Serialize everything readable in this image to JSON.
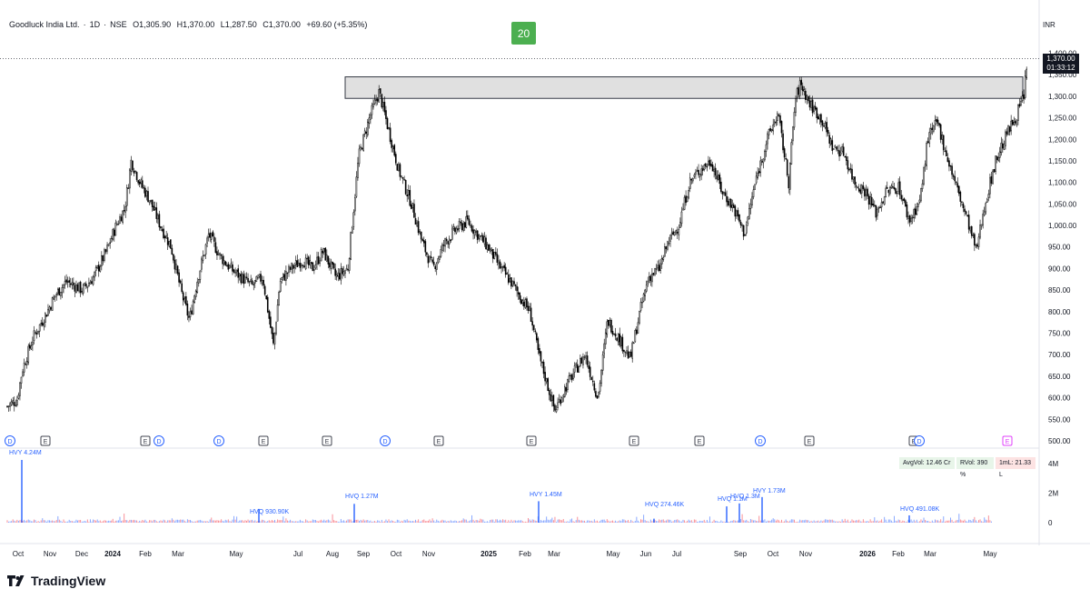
{
  "header": {
    "symbol": "Goodluck India Ltd.",
    "interval": "1D",
    "exchange": "NSE",
    "open": "O1,305.90",
    "high": "H1,370.00",
    "low": "L1,287.50",
    "close": "C1,370.00",
    "change": "+69.60 (+5.35%)"
  },
  "badge": "20",
  "currency": "INR",
  "price_label": {
    "price": "1,370.00",
    "countdown": "01:33:12"
  },
  "stats": {
    "avgvol": "AvgVol: 12.46 Cr",
    "rvol": "RVol: 390 %",
    "iml": "1mL: 21.33 L"
  },
  "brand": "TradingView",
  "colors": {
    "candle": "#000000",
    "zone_fill": "#e0e0e0",
    "zone_stroke": "#363a45",
    "event_d": "#2962ff",
    "event_e": "#434651",
    "vol_up": "#2962ff",
    "vol_down": "#f23645",
    "badge": "#4caf50"
  },
  "chart_data": {
    "type": "candlestick",
    "x_range": [
      "2023-10",
      "2026-05"
    ],
    "ylim": [
      500,
      1420
    ],
    "y_ticks": [
      "1,400.00",
      "1,350.00",
      "1,300.00",
      "1,250.00",
      "1,200.00",
      "1,150.00",
      "1,100.00",
      "1,050.00",
      "1,000.00",
      "950.00",
      "900.00",
      "850.00",
      "800.00",
      "750.00",
      "700.00",
      "650.00",
      "600.00",
      "550.00",
      "500.00"
    ],
    "x_ticks": [
      "Oct",
      "Nov",
      "Dec",
      "2024",
      "Feb",
      "Mar",
      "May",
      "Jul",
      "Aug",
      "Sep",
      "Oct",
      "Nov",
      "2025",
      "Feb",
      "Mar",
      "May",
      "Jun",
      "Jul",
      "Sep",
      "Oct",
      "Nov",
      "2026",
      "Feb",
      "Mar",
      "May"
    ],
    "resistance_zone": [
      1295,
      1345
    ],
    "last_price": 1370,
    "price_path": [
      [
        "2023-10-01",
        580
      ],
      [
        "2023-10-10",
        595
      ],
      [
        "2023-10-15",
        665
      ],
      [
        "2023-10-25",
        740
      ],
      [
        "2023-11-05",
        790
      ],
      [
        "2023-11-15",
        840
      ],
      [
        "2023-11-25",
        870
      ],
      [
        "2023-12-10",
        850
      ],
      [
        "2023-12-20",
        880
      ],
      [
        "2024-01-01",
        940
      ],
      [
        "2024-01-10",
        1000
      ],
      [
        "2024-01-18",
        1040
      ],
      [
        "2024-01-24",
        1150
      ],
      [
        "2024-02-01",
        1100
      ],
      [
        "2024-02-10",
        1060
      ],
      [
        "2024-02-20",
        1000
      ],
      [
        "2024-03-01",
        950
      ],
      [
        "2024-03-10",
        850
      ],
      [
        "2024-03-18",
        780
      ],
      [
        "2024-03-25",
        870
      ],
      [
        "2024-04-05",
        980
      ],
      [
        "2024-04-15",
        930
      ],
      [
        "2024-04-25",
        900
      ],
      [
        "2024-05-05",
        880
      ],
      [
        "2024-05-15",
        860
      ],
      [
        "2024-05-25",
        880
      ],
      [
        "2024-06-04",
        720
      ],
      [
        "2024-06-10",
        870
      ],
      [
        "2024-06-20",
        900
      ],
      [
        "2024-07-01",
        920
      ],
      [
        "2024-07-10",
        900
      ],
      [
        "2024-07-20",
        940
      ],
      [
        "2024-08-01",
        880
      ],
      [
        "2024-08-12",
        900
      ],
      [
        "2024-08-22",
        1160
      ],
      [
        "2024-09-01",
        1250
      ],
      [
        "2024-09-10",
        1310
      ],
      [
        "2024-09-18",
        1230
      ],
      [
        "2024-09-28",
        1130
      ],
      [
        "2024-10-10",
        1050
      ],
      [
        "2024-10-20",
        960
      ],
      [
        "2024-10-30",
        900
      ],
      [
        "2024-11-10",
        960
      ],
      [
        "2024-11-20",
        990
      ],
      [
        "2024-12-01",
        1010
      ],
      [
        "2024-12-10",
        980
      ],
      [
        "2024-12-20",
        950
      ],
      [
        "2025-01-01",
        900
      ],
      [
        "2025-01-10",
        870
      ],
      [
        "2025-01-20",
        830
      ],
      [
        "2025-01-28",
        800
      ],
      [
        "2025-02-05",
        700
      ],
      [
        "2025-02-12",
        640
      ],
      [
        "2025-02-20",
        570
      ],
      [
        "2025-03-01",
        620
      ],
      [
        "2025-03-10",
        660
      ],
      [
        "2025-03-20",
        700
      ],
      [
        "2025-04-01",
        600
      ],
      [
        "2025-04-10",
        780
      ],
      [
        "2025-04-20",
        740
      ],
      [
        "2025-05-01",
        690
      ],
      [
        "2025-05-10",
        800
      ],
      [
        "2025-05-18",
        880
      ],
      [
        "2025-05-28",
        900
      ],
      [
        "2025-06-05",
        960
      ],
      [
        "2025-06-15",
        1000
      ],
      [
        "2025-06-25",
        1100
      ],
      [
        "2025-07-05",
        1130
      ],
      [
        "2025-07-15",
        1150
      ],
      [
        "2025-07-25",
        1080
      ],
      [
        "2025-08-05",
        1040
      ],
      [
        "2025-08-15",
        980
      ],
      [
        "2025-08-25",
        1100
      ],
      [
        "2025-09-05",
        1200
      ],
      [
        "2025-09-15",
        1260
      ],
      [
        "2025-09-25",
        1100
      ],
      [
        "2025-10-01",
        1290
      ],
      [
        "2025-10-06",
        1330
      ],
      [
        "2025-10-15",
        1280
      ],
      [
        "2025-10-25",
        1250
      ],
      [
        "2025-11-05",
        1180
      ],
      [
        "2025-11-15",
        1170
      ],
      [
        "2025-11-25",
        1100
      ],
      [
        "2025-12-05",
        1080
      ],
      [
        "2025-12-15",
        1030
      ],
      [
        "2025-12-25",
        1080
      ],
      [
        "2026-01-05",
        1090
      ],
      [
        "2026-01-15",
        1010
      ],
      [
        "2026-01-25",
        1060
      ],
      [
        "2026-02-01",
        1200
      ],
      [
        "2026-02-10",
        1240
      ],
      [
        "2026-02-20",
        1150
      ],
      [
        "2026-03-01",
        1080
      ],
      [
        "2026-03-10",
        1010
      ],
      [
        "2026-03-18",
        940
      ],
      [
        "2026-03-26",
        1050
      ],
      [
        "2026-04-05",
        1150
      ],
      [
        "2026-04-15",
        1210
      ],
      [
        "2026-04-25",
        1260
      ],
      [
        "2026-05-01",
        1300
      ],
      [
        "2026-05-04",
        1370
      ]
    ],
    "events": [
      {
        "type": "D",
        "date": "2023-10-01"
      },
      {
        "type": "E",
        "date": "2023-11-05"
      },
      {
        "type": "E",
        "date": "2024-02-05"
      },
      {
        "type": "D",
        "date": "2024-02-17"
      },
      {
        "type": "D",
        "date": "2024-04-12"
      },
      {
        "type": "E",
        "date": "2024-05-20"
      },
      {
        "type": "E",
        "date": "2024-08-02"
      },
      {
        "type": "D",
        "date": "2024-09-22"
      },
      {
        "type": "E",
        "date": "2024-11-05"
      },
      {
        "type": "E",
        "date": "2025-02-12"
      },
      {
        "type": "E",
        "date": "2025-05-25"
      },
      {
        "type": "E",
        "date": "2025-08-08"
      },
      {
        "type": "D",
        "date": "2025-09-20"
      },
      {
        "type": "E",
        "date": "2025-11-05"
      },
      {
        "type": "E",
        "date": "2026-02-08"
      },
      {
        "type": "D",
        "date": "2026-02-12"
      },
      {
        "type": "E",
        "date": "2026-05-06"
      }
    ],
    "volume_axis": [
      "4M",
      "2M",
      "0"
    ],
    "volume_labels": [
      {
        "text": "HVY 4.24M",
        "date": "2023-10-01",
        "value": 4.24
      },
      {
        "text": "HVQ 930.90K",
        "date": "2024-08-28",
        "value": 0.93
      },
      {
        "text": "HVQ 1.27M",
        "date": "2024-08-30",
        "value": 1.27
      },
      {
        "text": "HVY 1.45M",
        "date": "2025-02-12",
        "value": 1.45
      },
      {
        "text": "HVQ 274.46K",
        "date": "2025-07-01",
        "value": 0.27
      },
      {
        "text": "HVQ 1.1M",
        "date": "2025-09-20",
        "value": 1.1
      },
      {
        "text": "HVQ 1.3M",
        "date": "2025-10-01",
        "value": 1.3
      },
      {
        "text": "HVY 1.73M",
        "date": "2025-10-06",
        "value": 1.73
      },
      {
        "text": "HVQ 491.08K",
        "date": "2026-03-05",
        "value": 0.49
      }
    ]
  }
}
